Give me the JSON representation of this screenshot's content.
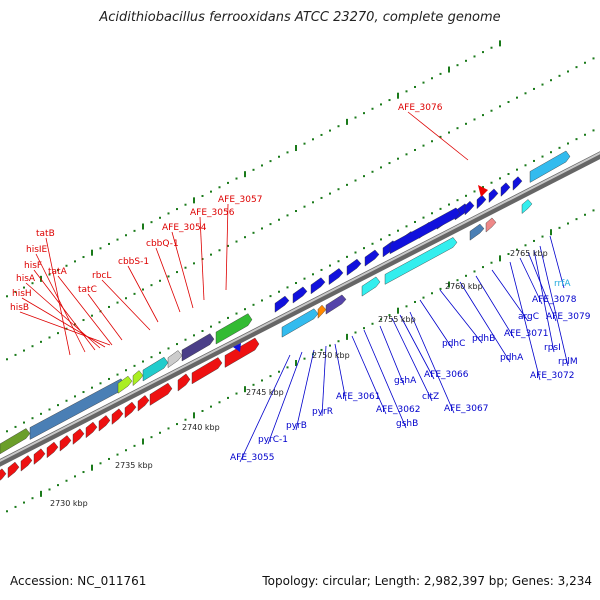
{
  "header": {
    "title": "Acidithiobacillus ferrooxidans ATCC 23270, complete genome"
  },
  "footer": {
    "accession": "Accession: NC_011761",
    "summary": "Topology: circular; Length: 2,982,397 bp; Genes: 3,234"
  },
  "colors": {
    "forward_gene": "#ff0000",
    "reverse_gene": "#0000ee",
    "cyan": "#33dddd",
    "backbone": "#888888",
    "tick": "#1a7a1a"
  },
  "ticks": [
    "2730 kbp",
    "2735 kbp",
    "2740 kbp",
    "2745 kbp",
    "2750 kbp",
    "2755 kbp",
    "2760 kbp",
    "2765 kbp"
  ],
  "upper_genes": [
    "tatB",
    "hisIE",
    "hisF",
    "hisA",
    "hisH",
    "hisB",
    "tatA",
    "tatC",
    "rbcL",
    "cbbS-1",
    "cbbQ-1",
    "AFE_3054",
    "AFE_3056",
    "AFE_3057",
    "AFE_3076"
  ],
  "lower_genes": [
    "AFE_3055",
    "pyrC-1",
    "pyrB",
    "pyrR",
    "AFE_3061",
    "AFE_3062",
    "gshB",
    "gshA",
    "citZ",
    "AFE_3066",
    "AFE_3067",
    "pdhC",
    "pdhB",
    "pdhA",
    "AFE_3071",
    "argC",
    "AFE_3072",
    "AFE_3078",
    "AFE_3079",
    "rpsI",
    "rplM",
    "rrfA"
  ]
}
